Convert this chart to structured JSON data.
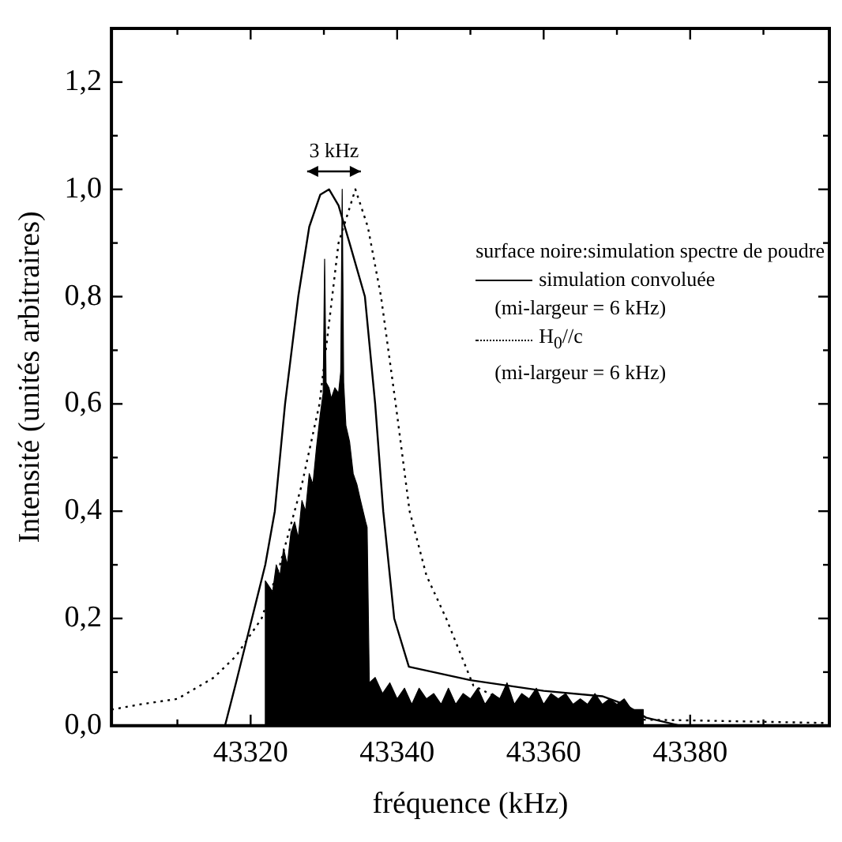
{
  "chart_data": {
    "type": "line",
    "xlabel": "fréquence (kHz)",
    "ylabel": "Intensité (unités arbitraires)",
    "xlim": [
      43301,
      43399
    ],
    "ylim": [
      0,
      1.3
    ],
    "xticks": [
      {
        "value": 43310,
        "label": null
      },
      43320,
      {
        "value": 43330,
        "label": null
      },
      43340,
      {
        "value": 43350,
        "label": null
      },
      43360,
      {
        "value": 43370,
        "label": null
      },
      43380,
      {
        "value": 43390,
        "label": null
      }
    ],
    "yticks": [
      {
        "value": 0,
        "label": "0,0"
      },
      {
        "value": 0.1,
        "label": null
      },
      {
        "value": 0.2,
        "label": "0,2"
      },
      {
        "value": 0.3,
        "label": null
      },
      {
        "value": 0.4,
        "label": "0,4"
      },
      {
        "value": 0.5,
        "label": null
      },
      {
        "value": 0.6,
        "label": "0,6"
      },
      {
        "value": 0.7,
        "label": null
      },
      {
        "value": 0.8,
        "label": "0,8"
      },
      {
        "value": 0.9,
        "label": null
      },
      {
        "value": 1.0,
        "label": "1,0"
      },
      {
        "value": 1.1,
        "label": null
      },
      {
        "value": 1.2,
        "label": "1,2"
      }
    ],
    "grid": false,
    "legend": "right",
    "legend_title": "surface noire:simulation spectre de poudre",
    "marker": "none",
    "annotations": [
      "3 kHz"
    ],
    "series": [
      {
        "type": "area",
        "color": "#000000",
        "x": [
          43322,
          43322,
          43323,
          43323.5,
          43324,
          43324.5,
          43325,
          43325.5,
          43326,
          43326.5,
          43327,
          43327.5,
          43328,
          43328.5,
          43329,
          43329.5,
          43329.9,
          43330.1,
          43330.3,
          43330.7,
          43331,
          43331.5,
          43332,
          43332.3,
          43332.5,
          43332.7,
          43333,
          43333.5,
          43334,
          43334.5,
          43335,
          43335.7,
          43335.9,
          43336.2,
          43337,
          43338,
          43339,
          43340,
          43341,
          43342,
          43343,
          43344,
          43345,
          43346,
          43347,
          43348,
          43349,
          43350,
          43351,
          43352,
          43353,
          43354,
          43355,
          43356,
          43357,
          43358,
          43359,
          43360,
          43361,
          43362,
          43363,
          43364,
          43365,
          43366,
          43367,
          43368,
          43369,
          43370,
          43371,
          43372,
          43373,
          43373.6,
          43373.6
        ],
        "values": [
          0,
          0.27,
          0.25,
          0.3,
          0.28,
          0.33,
          0.3,
          0.36,
          0.38,
          0.35,
          0.42,
          0.4,
          0.47,
          0.45,
          0.52,
          0.58,
          0.62,
          0.87,
          0.64,
          0.63,
          0.61,
          0.63,
          0.62,
          0.66,
          1.0,
          0.64,
          0.56,
          0.53,
          0.47,
          0.45,
          0.42,
          0.38,
          0.37,
          0.08,
          0.09,
          0.06,
          0.08,
          0.05,
          0.07,
          0.04,
          0.07,
          0.05,
          0.06,
          0.04,
          0.07,
          0.04,
          0.06,
          0.05,
          0.07,
          0.04,
          0.06,
          0.05,
          0.08,
          0.04,
          0.06,
          0.05,
          0.07,
          0.04,
          0.06,
          0.05,
          0.06,
          0.04,
          0.05,
          0.04,
          0.06,
          0.04,
          0.05,
          0.04,
          0.05,
          0.03,
          0.03,
          0.03,
          0
        ]
      },
      {
        "type": "line",
        "name": "simulation convoluée\n(mi-largeur = 6 kHz)",
        "color": "#000000",
        "line_style": "solid",
        "x": [
          43316.5,
          43318,
          43320,
          43322,
          43323.3,
          43324.7,
          43326.5,
          43328,
          43329.5,
          43330.7,
          43332,
          43333.5,
          43335.6,
          43337,
          43338.1,
          43339.6,
          43341.6,
          43350,
          43360,
          43368,
          43371,
          43374,
          43378.7
        ],
        "values": [
          0,
          0.08,
          0.19,
          0.3,
          0.4,
          0.6,
          0.8,
          0.93,
          0.99,
          1.0,
          0.97,
          0.9,
          0.8,
          0.6,
          0.4,
          0.2,
          0.11,
          0.085,
          0.065,
          0.055,
          0.04,
          0.015,
          0
        ]
      },
      {
        "type": "line",
        "name": "H$_{0}$//c\n(mi-largeur = 6 kHz)",
        "color": "#000000",
        "line_style": "dotted",
        "x": [
          43301,
          43305,
          43310,
          43315,
          43318,
          43321.5,
          43324,
          43327,
          43329.4,
          43332,
          43334.3,
          43336,
          43337.8,
          43339.8,
          43341.7,
          43344,
          43346.7,
          43350.4,
          43355.4,
          43360,
          43365,
          43370,
          43380,
          43399
        ],
        "values": [
          0.03,
          0.04,
          0.05,
          0.09,
          0.13,
          0.2,
          0.3,
          0.45,
          0.6,
          0.9,
          1.0,
          0.93,
          0.8,
          0.6,
          0.4,
          0.28,
          0.2,
          0.075,
          0.04,
          0.025,
          0.015,
          0.012,
          0.01,
          0.005
        ]
      }
    ]
  }
}
